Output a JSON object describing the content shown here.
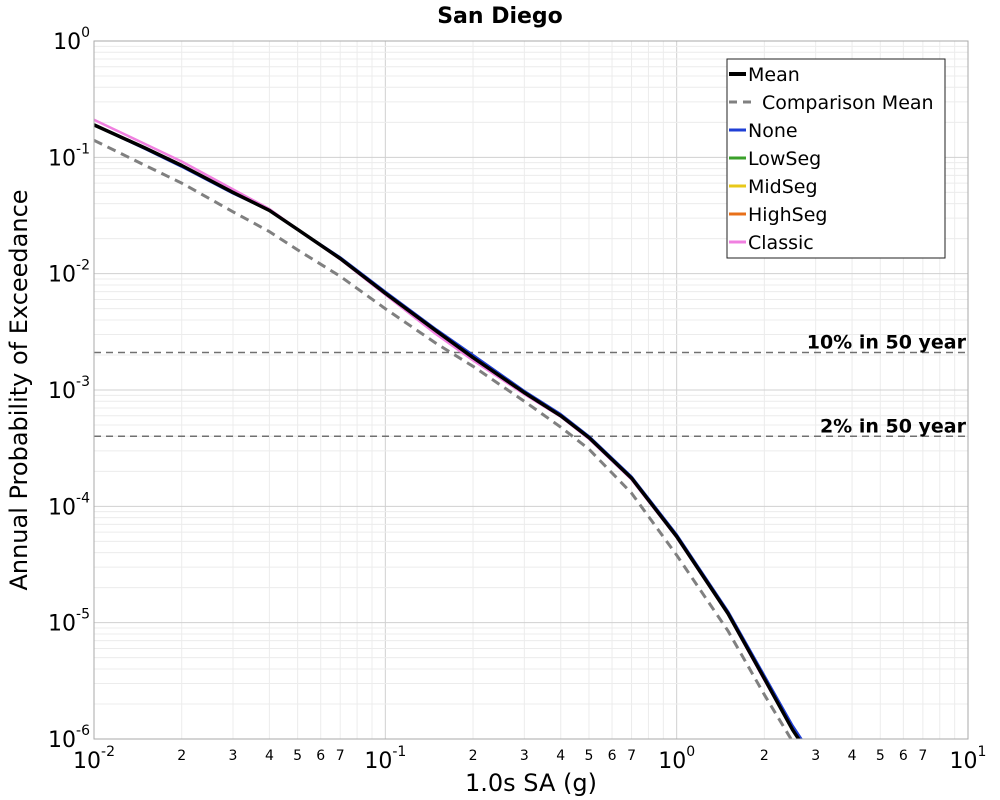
{
  "chart_data": {
    "type": "line",
    "title": "San Diego",
    "xlabel": "1.0s SA (g)",
    "ylabel": "Annual Probability of Exceedance",
    "xscale": "log",
    "yscale": "log",
    "xlim": [
      0.01,
      10
    ],
    "ylim": [
      1e-06,
      1
    ],
    "grid": true,
    "legend_position": "top-right",
    "x_major_ticks": [
      {
        "base": "10",
        "exp": "-2",
        "value": 0.01
      },
      {
        "base": "10",
        "exp": "-1",
        "value": 0.1
      },
      {
        "base": "10",
        "exp": "0",
        "value": 1
      },
      {
        "base": "10",
        "exp": "1",
        "value": 10
      }
    ],
    "y_major_ticks": [
      {
        "base": "10",
        "exp": "0",
        "value": 1
      },
      {
        "base": "10",
        "exp": "-1",
        "value": 0.1
      },
      {
        "base": "10",
        "exp": "-2",
        "value": 0.01
      },
      {
        "base": "10",
        "exp": "-3",
        "value": 0.001
      },
      {
        "base": "10",
        "exp": "-4",
        "value": 0.0001
      },
      {
        "base": "10",
        "exp": "-5",
        "value": 1e-05
      },
      {
        "base": "10",
        "exp": "-6",
        "value": 1e-06
      }
    ],
    "x_minor_tick_labels": [
      "2",
      "3",
      "4",
      "5",
      "6",
      "7"
    ],
    "reference_lines": [
      {
        "label": "10% in 50 year",
        "y": 0.0021
      },
      {
        "label": "2% in 50 year",
        "y": 0.0004
      }
    ],
    "series": [
      {
        "name": "Mean",
        "color": "#000000",
        "style": "solid",
        "x": [
          0.01,
          0.015,
          0.02,
          0.03,
          0.04,
          0.05,
          0.07,
          0.1,
          0.15,
          0.2,
          0.3,
          0.4,
          0.5,
          0.7,
          1.0,
          1.5,
          2.0,
          2.5,
          3.0
        ],
        "y": [
          0.19,
          0.12,
          0.085,
          0.05,
          0.035,
          0.024,
          0.0135,
          0.0068,
          0.0032,
          0.0019,
          0.00095,
          0.0006,
          0.00039,
          0.000175,
          5.5e-05,
          1.2e-05,
          3.3e-06,
          1.2e-06,
          6e-07
        ]
      },
      {
        "name": "Comparison Mean",
        "color": "#808080",
        "style": "dashed",
        "x": [
          0.01,
          0.015,
          0.02,
          0.03,
          0.04,
          0.05,
          0.07,
          0.1,
          0.15,
          0.2,
          0.3,
          0.4,
          0.5,
          0.7,
          1.0,
          1.5,
          2.0,
          2.5,
          3.0
        ],
        "y": [
          0.14,
          0.085,
          0.06,
          0.034,
          0.023,
          0.016,
          0.0095,
          0.005,
          0.0025,
          0.0016,
          0.0008,
          0.00048,
          0.00031,
          0.00013,
          3.8e-05,
          8.5e-06,
          2.4e-06,
          9.5e-07,
          5e-07
        ]
      },
      {
        "name": "None",
        "color": "#1f3fd6",
        "style": "solid",
        "x": [
          0.01,
          0.015,
          0.02,
          0.03,
          0.04,
          0.05,
          0.07,
          0.1,
          0.15,
          0.2,
          0.3,
          0.4,
          0.5,
          0.7,
          1.0,
          1.5,
          2.0,
          2.5,
          3.0
        ],
        "y": [
          0.19,
          0.118,
          0.083,
          0.049,
          0.035,
          0.024,
          0.0138,
          0.007,
          0.0033,
          0.002,
          0.00098,
          0.00062,
          0.0004,
          0.00018,
          5.7e-05,
          1.25e-05,
          3.5e-06,
          1.3e-06,
          6.5e-07
        ]
      },
      {
        "name": "LowSeg",
        "color": "#3aa02a",
        "style": "solid",
        "x": [
          0.01,
          0.015,
          0.02,
          0.03,
          0.04,
          0.05,
          0.07,
          0.1,
          0.15,
          0.2,
          0.3,
          0.4,
          0.5,
          0.7,
          1.0,
          1.5,
          2.0,
          2.5,
          3.0
        ],
        "y": [
          0.19,
          0.12,
          0.085,
          0.05,
          0.035,
          0.024,
          0.0135,
          0.0068,
          0.0032,
          0.0019,
          0.00095,
          0.0006,
          0.00039,
          0.000175,
          5.5e-05,
          1.2e-05,
          3.3e-06,
          1.2e-06,
          6e-07
        ]
      },
      {
        "name": "MidSeg",
        "color": "#e8c81a",
        "style": "solid",
        "x": [
          0.01,
          0.015,
          0.02,
          0.03,
          0.04,
          0.05,
          0.07,
          0.1,
          0.15,
          0.2,
          0.3,
          0.4,
          0.5,
          0.7,
          1.0,
          1.5,
          2.0,
          2.5,
          3.0
        ],
        "y": [
          0.19,
          0.12,
          0.085,
          0.05,
          0.035,
          0.024,
          0.0135,
          0.0068,
          0.0032,
          0.0019,
          0.00095,
          0.0006,
          0.00039,
          0.000175,
          5.5e-05,
          1.2e-05,
          3.3e-06,
          1.2e-06,
          6e-07
        ]
      },
      {
        "name": "HighSeg",
        "color": "#e8701a",
        "style": "solid",
        "x": [
          0.01,
          0.015,
          0.02,
          0.03,
          0.04,
          0.05,
          0.07,
          0.1,
          0.15,
          0.2,
          0.3,
          0.4,
          0.5,
          0.7,
          1.0,
          1.5,
          2.0,
          2.5,
          3.0
        ],
        "y": [
          0.19,
          0.12,
          0.085,
          0.05,
          0.035,
          0.024,
          0.0135,
          0.0068,
          0.0032,
          0.0019,
          0.00095,
          0.0006,
          0.00039,
          0.000175,
          5.5e-05,
          1.2e-05,
          3.3e-06,
          1.2e-06,
          6e-07
        ]
      },
      {
        "name": "Classic",
        "color": "#f080e0",
        "style": "solid",
        "x": [
          0.01,
          0.015,
          0.02,
          0.03,
          0.04,
          0.05,
          0.07,
          0.1,
          0.15,
          0.2,
          0.3,
          0.4,
          0.5,
          0.7,
          1.0,
          1.5,
          2.0,
          2.5,
          3.0
        ],
        "y": [
          0.21,
          0.13,
          0.092,
          0.053,
          0.036,
          0.024,
          0.0133,
          0.0066,
          0.003,
          0.0018,
          0.00092,
          0.00059,
          0.00038,
          0.00017,
          5.4e-05,
          1.18e-05,
          3.2e-06,
          1.2e-06,
          6e-07
        ]
      }
    ]
  }
}
